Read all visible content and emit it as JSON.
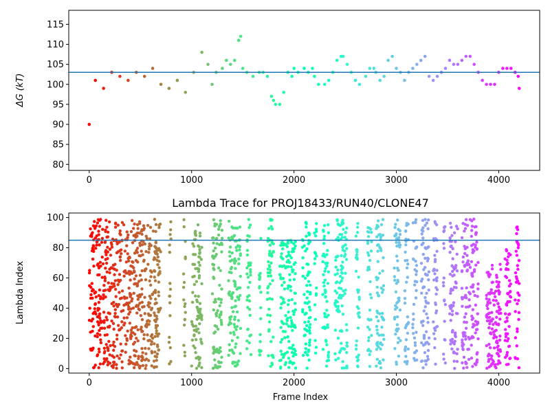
{
  "chart_data": [
    {
      "type": "scatter",
      "title": "",
      "xlabel": "",
      "ylabel": "ΔG (kT)",
      "xlim": [
        -200,
        4400
      ],
      "ylim": [
        78.5,
        118.5
      ],
      "xticks": [
        0,
        1000,
        2000,
        3000,
        4000
      ],
      "yticks": [
        80,
        85,
        90,
        95,
        100,
        105,
        110,
        115
      ],
      "hline": 103.0,
      "hline_color": "#1f77b4",
      "colormap": "rainbow",
      "grid": false,
      "frames": [
        0,
        60,
        140,
        220,
        300,
        380,
        460,
        540,
        620,
        700,
        780,
        860,
        940,
        1020,
        1100,
        1160,
        1200,
        1240,
        1300,
        1340,
        1380,
        1420,
        1460,
        1480,
        1500,
        1540,
        1600,
        1660,
        1700,
        1740,
        1780,
        1800,
        1820,
        1860,
        1900,
        1940,
        1980,
        2000,
        2040,
        2100,
        2140,
        2180,
        2200,
        2240,
        2300,
        2340,
        2380,
        2420,
        2460,
        2480,
        2520,
        2560,
        2600,
        2640,
        2700,
        2740,
        2780,
        2800,
        2840,
        2880,
        2920,
        2960,
        3000,
        3040,
        3080,
        3120,
        3160,
        3200,
        3240,
        3280,
        3320,
        3360,
        3400,
        3440,
        3480,
        3520,
        3560,
        3600,
        3640,
        3680,
        3720,
        3760,
        3800,
        3840,
        3880,
        3920,
        3960,
        4000,
        4040,
        4080,
        4120,
        4160,
        4190,
        4200
      ],
      "values": [
        90,
        101,
        99,
        103,
        102,
        101,
        103,
        102,
        104,
        100,
        99,
        101,
        98,
        103,
        108,
        105,
        100,
        103,
        104,
        106,
        105,
        106,
        111,
        112,
        104,
        103,
        102,
        103,
        103,
        102,
        97,
        96,
        95,
        95,
        98,
        103,
        102,
        104,
        103,
        104,
        103,
        104,
        102,
        100,
        100,
        101,
        103,
        106,
        107,
        107,
        105,
        103,
        101,
        100,
        102,
        104,
        104,
        103,
        101,
        102,
        106,
        107,
        104,
        103,
        101,
        103,
        104,
        105,
        106,
        107,
        102,
        101,
        102,
        103,
        104,
        106,
        105,
        105,
        106,
        107,
        107,
        105,
        103,
        101,
        100,
        100,
        100,
        103,
        104,
        104,
        104,
        103,
        102,
        99
      ]
    },
    {
      "type": "scatter",
      "title": "Lambda Trace for PROJ18433/RUN40/CLONE47",
      "xlabel": "Frame Index",
      "ylabel": "Lambda Index",
      "xlim": [
        -200,
        4400
      ],
      "ylim": [
        -3,
        103
      ],
      "xticks": [
        0,
        1000,
        2000,
        3000,
        4000
      ],
      "yticks": [
        0,
        20,
        40,
        60,
        80,
        100
      ],
      "hline": 85,
      "hline_color": "#1f77b4",
      "colormap": "rainbow",
      "grid": false,
      "bands": [
        {
          "x": [
            0,
            140
          ],
          "y": [
            0,
            99
          ]
        },
        {
          "x": [
            140,
            700
          ],
          "y": [
            0,
            99
          ]
        },
        {
          "x": [
            780,
            800
          ],
          "y": [
            0,
            99
          ]
        },
        {
          "x": [
            920,
            940
          ],
          "y": [
            0,
            99
          ]
        },
        {
          "x": [
            1000,
            1100
          ],
          "y": [
            0,
            99
          ]
        },
        {
          "x": [
            1200,
            1300
          ],
          "y": [
            0,
            99
          ]
        },
        {
          "x": [
            1360,
            1480
          ],
          "y": [
            0,
            99
          ]
        },
        {
          "x": [
            1540,
            1580
          ],
          "y": [
            0,
            99
          ]
        },
        {
          "x": [
            1660,
            1680
          ],
          "y": [
            0,
            99
          ]
        },
        {
          "x": [
            1740,
            1800
          ],
          "y": [
            0,
            99
          ]
        },
        {
          "x": [
            1860,
            2020
          ],
          "y": [
            0,
            85
          ]
        },
        {
          "x": [
            2080,
            2160
          ],
          "y": [
            0,
            99
          ]
        },
        {
          "x": [
            2200,
            2220
          ],
          "y": [
            0,
            99
          ]
        },
        {
          "x": [
            2280,
            2340
          ],
          "y": [
            0,
            99
          ]
        },
        {
          "x": [
            2400,
            2520
          ],
          "y": [
            0,
            99
          ]
        },
        {
          "x": [
            2600,
            2640
          ],
          "y": [
            0,
            99
          ]
        },
        {
          "x": [
            2720,
            2760
          ],
          "y": [
            0,
            99
          ]
        },
        {
          "x": [
            2800,
            2880
          ],
          "y": [
            0,
            99
          ]
        },
        {
          "x": [
            2980,
            3040
          ],
          "y": [
            0,
            99
          ]
        },
        {
          "x": [
            3080,
            3120
          ],
          "y": [
            0,
            99
          ]
        },
        {
          "x": [
            3160,
            3200
          ],
          "y": [
            0,
            99
          ]
        },
        {
          "x": [
            3240,
            3320
          ],
          "y": [
            0,
            99
          ]
        },
        {
          "x": [
            3360,
            3400
          ],
          "y": [
            0,
            99
          ]
        },
        {
          "x": [
            3460,
            3480
          ],
          "y": [
            0,
            99
          ]
        },
        {
          "x": [
            3520,
            3600
          ],
          "y": [
            0,
            99
          ]
        },
        {
          "x": [
            3640,
            3800
          ],
          "y": [
            0,
            99
          ]
        },
        {
          "x": [
            3880,
            4020
          ],
          "y": [
            0,
            70
          ]
        },
        {
          "x": [
            4060,
            4120
          ],
          "y": [
            0,
            80
          ]
        },
        {
          "x": [
            4160,
            4200
          ],
          "y": [
            0,
            99
          ]
        }
      ]
    }
  ]
}
